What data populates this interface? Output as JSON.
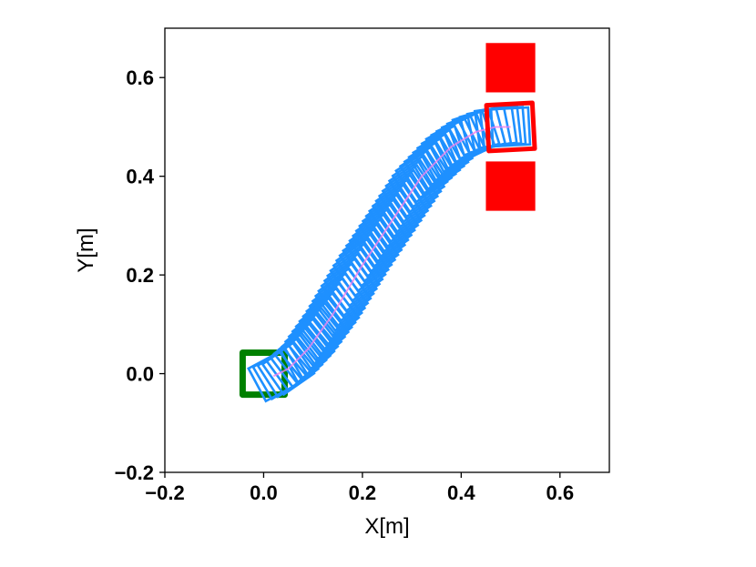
{
  "chart_data": {
    "type": "scatter",
    "title": "",
    "xlabel": "X[m]",
    "ylabel": "Y[m]",
    "xlim": [
      -0.2,
      0.7
    ],
    "ylim": [
      -0.2,
      0.7
    ],
    "xticks": [
      -0.2,
      0.0,
      0.2,
      0.4,
      0.6
    ],
    "yticks": [
      -0.2,
      0.0,
      0.2,
      0.4,
      0.6
    ],
    "xtick_labels": [
      "−0.2",
      "0.0",
      "0.2",
      "0.4",
      "0.6"
    ],
    "ytick_labels": [
      "−0.2",
      "0.0",
      "0.2",
      "0.4",
      "0.6"
    ],
    "grid": false,
    "legend": "none",
    "start_pose": {
      "x": 0.0,
      "y": 0.0,
      "theta_deg": 0,
      "side": 0.085,
      "color": "#008000"
    },
    "goal_pose": {
      "x": 0.5,
      "y": 0.5,
      "theta_deg": 3,
      "side": 0.093,
      "color": "#ff0000"
    },
    "obstacles": [
      {
        "x": [
          0.45,
          0.55
        ],
        "y": [
          0.57,
          0.67
        ],
        "color": "#ff0000"
      },
      {
        "x": [
          0.45,
          0.55
        ],
        "y": [
          0.33,
          0.43
        ],
        "color": "#ff0000"
      }
    ],
    "trajectory": {
      "color": "#1e90ff",
      "path_color": "#ee82ee",
      "box_side": 0.075,
      "waypoints": [
        {
          "x": 0.02,
          "y": -0.005,
          "theta_deg": 28
        },
        {
          "x": 0.05,
          "y": 0.01,
          "theta_deg": 35
        },
        {
          "x": 0.09,
          "y": 0.05,
          "theta_deg": 40
        },
        {
          "x": 0.14,
          "y": 0.12,
          "theta_deg": 38
        },
        {
          "x": 0.2,
          "y": 0.22,
          "theta_deg": 35
        },
        {
          "x": 0.26,
          "y": 0.31,
          "theta_deg": 35
        },
        {
          "x": 0.32,
          "y": 0.4,
          "theta_deg": 33
        },
        {
          "x": 0.38,
          "y": 0.46,
          "theta_deg": 28
        },
        {
          "x": 0.43,
          "y": 0.49,
          "theta_deg": 18
        },
        {
          "x": 0.47,
          "y": 0.5,
          "theta_deg": 8
        },
        {
          "x": 0.5,
          "y": 0.5,
          "theta_deg": 3
        }
      ]
    }
  }
}
